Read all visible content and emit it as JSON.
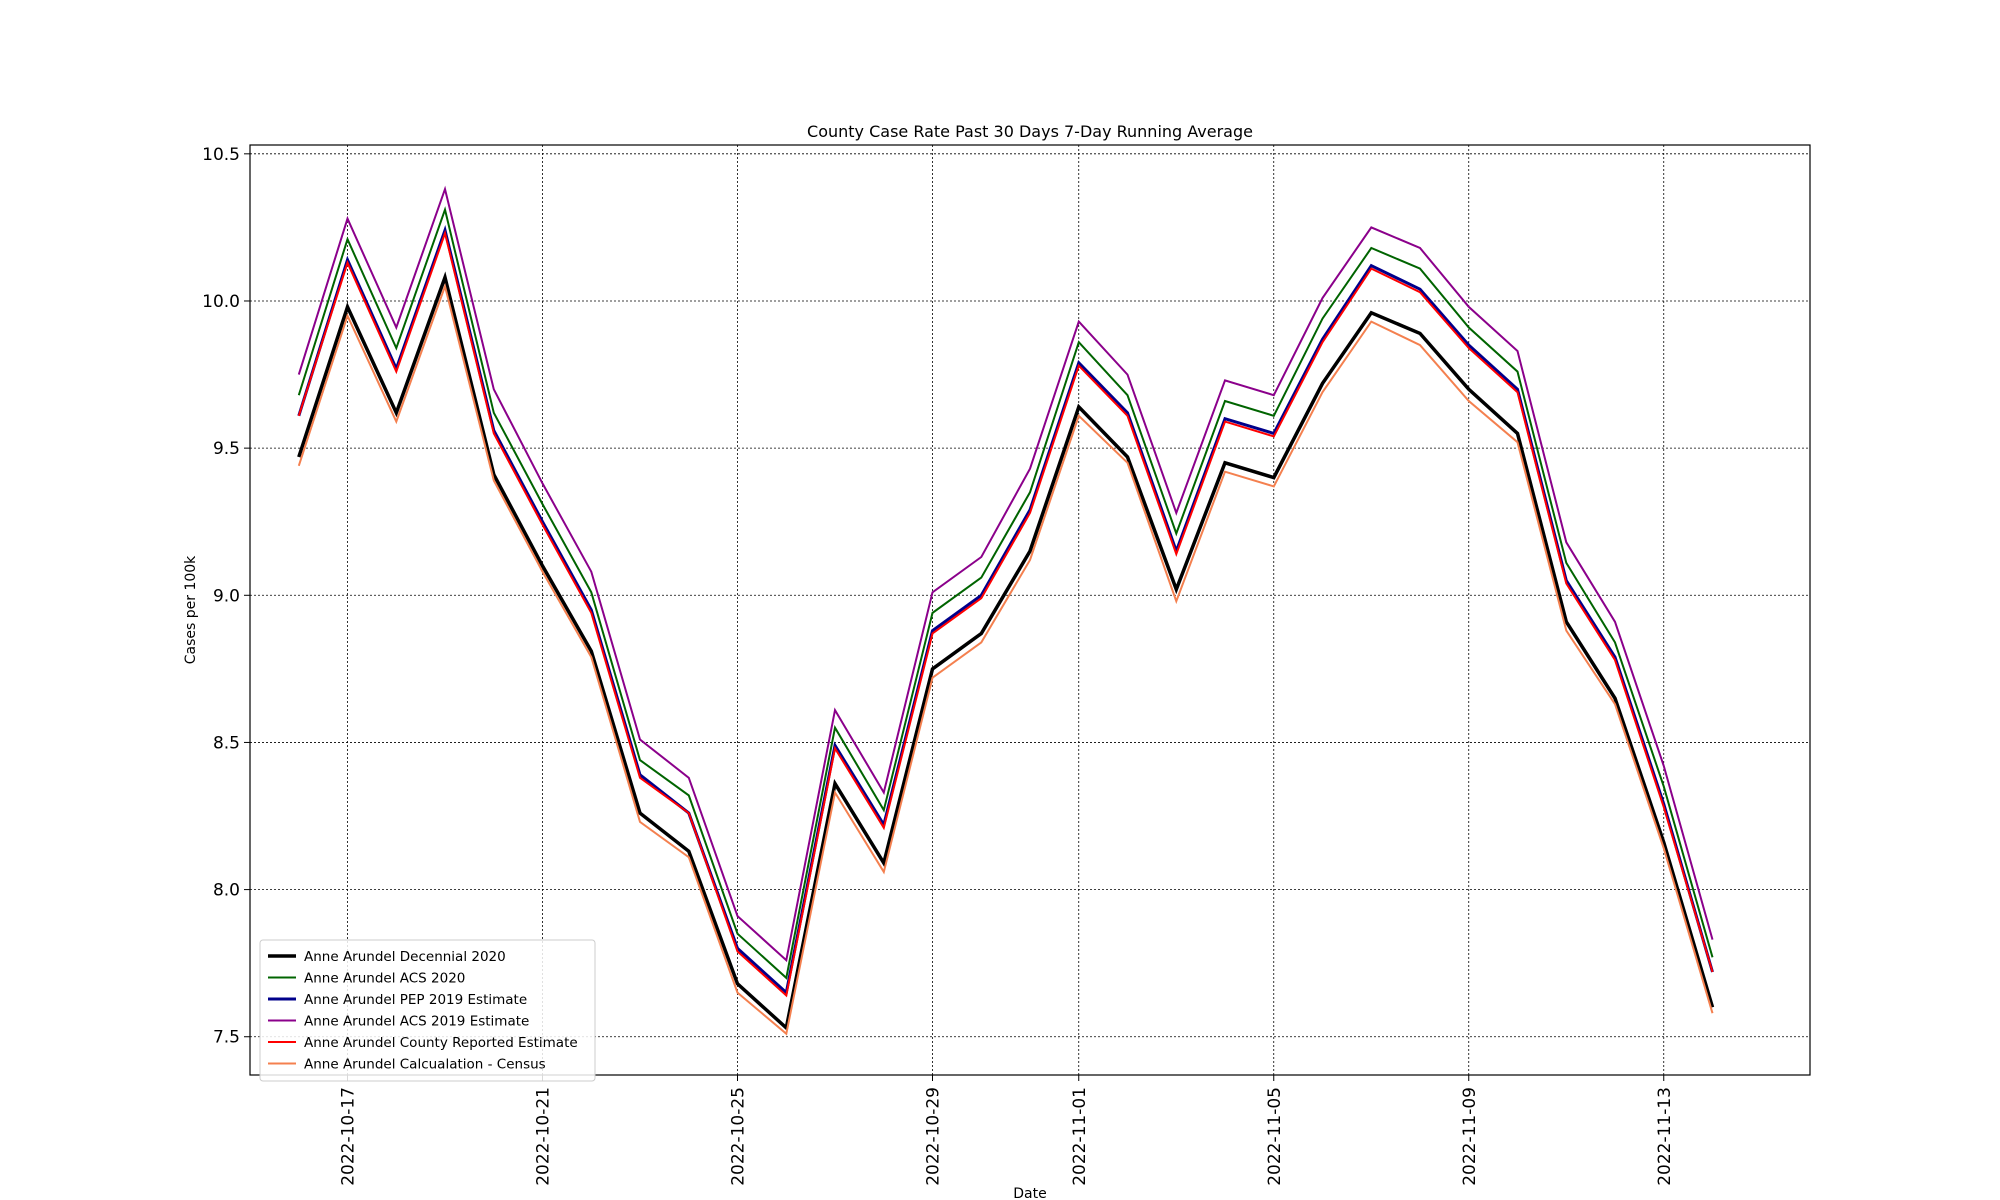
{
  "chart_data": {
    "type": "line",
    "title": "County Case Rate  Past 30 Days 7-Day Running Average",
    "xlabel": "Date",
    "ylabel": "Cases per 100k",
    "ylim": [
      7.37,
      10.53
    ],
    "xlim": [
      "2022-10-15",
      "2022-11-16"
    ],
    "yticks": [
      7.5,
      8.0,
      8.5,
      9.0,
      9.5,
      10.0,
      10.5
    ],
    "ytick_labels": [
      "7.5",
      "8.0",
      "8.5",
      "9.0",
      "9.5",
      "10.0",
      "10.5"
    ],
    "xticks": [
      "2022-10-17",
      "2022-10-21",
      "2022-10-25",
      "2022-10-29",
      "2022-11-01",
      "2022-11-05",
      "2022-11-09",
      "2022-11-13"
    ],
    "grid": true,
    "legend_position": "lower-left",
    "x": [
      "2022-10-16",
      "2022-10-17",
      "2022-10-18",
      "2022-10-19",
      "2022-10-20",
      "2022-10-21",
      "2022-10-22",
      "2022-10-23",
      "2022-10-24",
      "2022-10-25",
      "2022-10-26",
      "2022-10-27",
      "2022-10-28",
      "2022-10-29",
      "2022-10-30",
      "2022-10-31",
      "2022-11-01",
      "2022-11-02",
      "2022-11-03",
      "2022-11-04",
      "2022-11-05",
      "2022-11-06",
      "2022-11-07",
      "2022-11-08",
      "2022-11-09",
      "2022-11-10",
      "2022-11-11",
      "2022-11-12",
      "2022-11-13",
      "2022-11-14"
    ],
    "series": [
      {
        "name": "Anne Arundel Decennial 2020",
        "color": "#000000",
        "width": 3.5,
        "values": [
          9.47,
          9.98,
          9.62,
          10.08,
          9.41,
          9.1,
          8.81,
          8.26,
          8.13,
          7.68,
          7.53,
          8.36,
          8.09,
          8.75,
          8.87,
          9.15,
          9.64,
          9.47,
          9.02,
          9.45,
          9.4,
          9.72,
          9.96,
          9.89,
          9.7,
          9.55,
          8.91,
          8.65,
          8.16,
          7.6
        ]
      },
      {
        "name": "Anne Arundel ACS 2020",
        "color": "#006400",
        "width": 2,
        "values": [
          9.68,
          10.21,
          9.84,
          10.31,
          9.62,
          9.31,
          9.01,
          8.44,
          8.32,
          7.85,
          7.7,
          8.55,
          8.27,
          8.94,
          9.06,
          9.35,
          9.86,
          9.68,
          9.21,
          9.66,
          9.61,
          9.94,
          10.18,
          10.11,
          9.91,
          9.76,
          9.11,
          8.84,
          8.35,
          7.77
        ]
      },
      {
        "name": "Anne Arundel PEP 2019 Estimate",
        "color": "#00008b",
        "width": 3,
        "values": [
          9.61,
          10.14,
          9.77,
          10.24,
          9.56,
          9.25,
          8.95,
          8.39,
          8.26,
          7.8,
          7.65,
          8.49,
          8.22,
          8.88,
          9.0,
          9.29,
          9.79,
          9.62,
          9.15,
          9.6,
          9.55,
          9.87,
          10.12,
          10.04,
          9.85,
          9.7,
          9.05,
          8.79,
          8.29,
          7.72
        ]
      },
      {
        "name": "Anne Arundel ACS 2019 Estimate",
        "color": "#8b008b",
        "width": 2,
        "values": [
          9.75,
          10.28,
          9.91,
          10.38,
          9.7,
          9.38,
          9.08,
          8.51,
          8.38,
          7.91,
          7.76,
          8.61,
          8.33,
          9.01,
          9.13,
          9.43,
          9.93,
          9.75,
          9.28,
          9.73,
          9.68,
          10.01,
          10.25,
          10.18,
          9.98,
          9.83,
          9.18,
          8.91,
          8.42,
          7.83
        ]
      },
      {
        "name": "Anne Arundel County Reported Estimate",
        "color": "#ff0000",
        "width": 2,
        "values": [
          9.61,
          10.13,
          9.76,
          10.23,
          9.55,
          9.24,
          8.94,
          8.38,
          8.26,
          7.79,
          7.64,
          8.48,
          8.21,
          8.87,
          8.99,
          9.28,
          9.78,
          9.61,
          9.14,
          9.59,
          9.54,
          9.86,
          10.11,
          10.03,
          9.84,
          9.69,
          9.04,
          8.78,
          8.28,
          7.72
        ]
      },
      {
        "name": "Anne Arundel Calcualation - Census",
        "color": "#f4804f",
        "width": 2,
        "values": [
          9.44,
          9.95,
          9.59,
          10.05,
          9.39,
          9.08,
          8.79,
          8.23,
          8.11,
          7.65,
          7.51,
          8.33,
          8.06,
          8.72,
          8.84,
          9.12,
          9.61,
          9.45,
          8.98,
          9.42,
          9.37,
          9.69,
          9.93,
          9.85,
          9.66,
          9.52,
          8.88,
          8.63,
          8.14,
          7.58
        ]
      }
    ]
  }
}
